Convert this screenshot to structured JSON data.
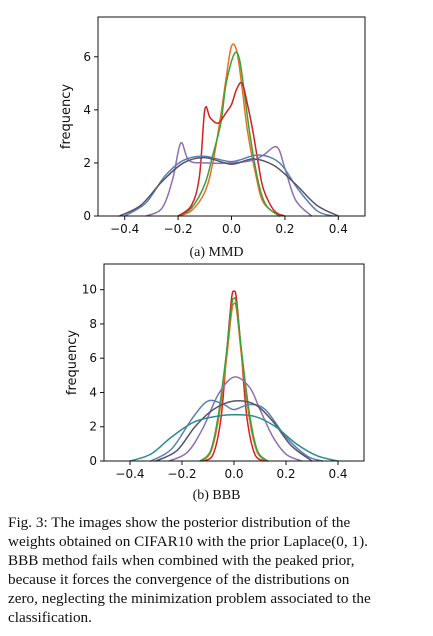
{
  "chart_data": [
    {
      "type": "line",
      "subtitle": "(a) MMD",
      "ylabel": "frequency",
      "xlabel": "",
      "xlim": [
        -0.5,
        0.5
      ],
      "ylim": [
        0,
        7.5
      ],
      "xticks": [
        -0.4,
        -0.2,
        0.0,
        0.2,
        0.4
      ],
      "xtick_labels": [
        "−0.4",
        "−0.2",
        "0.0",
        "0.2",
        "0.4"
      ],
      "yticks": [
        0,
        2,
        4,
        6
      ],
      "ytick_labels": [
        "0",
        "2",
        "4",
        "6"
      ],
      "grid": false,
      "series": [
        {
          "color": "#e7701e",
          "values": [
            [
              -0.2,
              0
            ],
            [
              -0.15,
              0.2
            ],
            [
              -0.1,
              0.9
            ],
            [
              -0.07,
              2.0
            ],
            [
              -0.04,
              3.8
            ],
            [
              -0.02,
              5.2
            ],
            [
              0.0,
              6.4
            ],
            [
              0.02,
              6.2
            ],
            [
              0.04,
              4.8
            ],
            [
              0.06,
              3.2
            ],
            [
              0.09,
              1.6
            ],
            [
              0.12,
              0.5
            ],
            [
              0.18,
              0
            ]
          ]
        },
        {
          "color": "#3aa23a",
          "values": [
            [
              -0.2,
              0
            ],
            [
              -0.15,
              0.3
            ],
            [
              -0.1,
              1.2
            ],
            [
              -0.07,
              2.3
            ],
            [
              -0.04,
              3.5
            ],
            [
              -0.02,
              5.0
            ],
            [
              0.01,
              6.1
            ],
            [
              0.03,
              5.9
            ],
            [
              0.05,
              4.5
            ],
            [
              0.07,
              3.0
            ],
            [
              0.1,
              1.3
            ],
            [
              0.13,
              0.4
            ],
            [
              0.18,
              0
            ]
          ]
        },
        {
          "color": "#d42020",
          "values": [
            [
              -0.2,
              0
            ],
            [
              -0.15,
              0.4
            ],
            [
              -0.12,
              1.5
            ],
            [
              -0.1,
              4.0
            ],
            [
              -0.08,
              3.7
            ],
            [
              -0.05,
              3.5
            ],
            [
              -0.02,
              3.9
            ],
            [
              0.0,
              4.2
            ],
            [
              0.02,
              4.8
            ],
            [
              0.04,
              5.0
            ],
            [
              0.06,
              4.2
            ],
            [
              0.08,
              3.2
            ],
            [
              0.1,
              2.0
            ],
            [
              0.12,
              1.0
            ],
            [
              0.16,
              0.2
            ],
            [
              0.2,
              0
            ]
          ]
        },
        {
          "color": "#8e6fb5",
          "values": [
            [
              -0.32,
              0
            ],
            [
              -0.26,
              0.3
            ],
            [
              -0.22,
              1.4
            ],
            [
              -0.19,
              2.75
            ],
            [
              -0.16,
              2.1
            ],
            [
              -0.1,
              2.0
            ],
            [
              0.0,
              2.0
            ],
            [
              0.08,
              2.1
            ],
            [
              0.12,
              2.3
            ],
            [
              0.17,
              2.6
            ],
            [
              0.2,
              1.8
            ],
            [
              0.24,
              0.6
            ],
            [
              0.3,
              0
            ]
          ]
        },
        {
          "color": "#5a7fb3",
          "values": [
            [
              -0.4,
              0
            ],
            [
              -0.32,
              0.5
            ],
            [
              -0.25,
              1.5
            ],
            [
              -0.18,
              2.1
            ],
            [
              -0.1,
              2.25
            ],
            [
              0.0,
              2.05
            ],
            [
              0.1,
              2.3
            ],
            [
              0.18,
              2.0
            ],
            [
              0.25,
              1.0
            ],
            [
              0.32,
              0.2
            ],
            [
              0.38,
              0
            ]
          ]
        },
        {
          "color": "#555566",
          "values": [
            [
              -0.42,
              0
            ],
            [
              -0.34,
              0.4
            ],
            [
              -0.26,
              1.3
            ],
            [
              -0.18,
              2.0
            ],
            [
              -0.1,
              2.2
            ],
            [
              0.0,
              1.95
            ],
            [
              0.08,
              2.15
            ],
            [
              0.16,
              1.9
            ],
            [
              0.24,
              1.2
            ],
            [
              0.32,
              0.4
            ],
            [
              0.4,
              0
            ]
          ]
        }
      ]
    },
    {
      "type": "line",
      "subtitle": "(b) BBB",
      "ylabel": "frequency",
      "xlabel": "",
      "xlim": [
        -0.5,
        0.5
      ],
      "ylim": [
        0,
        11.5
      ],
      "xticks": [
        -0.4,
        -0.2,
        0.0,
        0.2,
        0.4
      ],
      "xtick_labels": [
        "−0.4",
        "−0.2",
        "0.0",
        "0.2",
        "0.4"
      ],
      "yticks": [
        0,
        2,
        4,
        6,
        8,
        10
      ],
      "ytick_labels": [
        "0",
        "2",
        "4",
        "6",
        "8",
        "10"
      ],
      "grid": false,
      "series": [
        {
          "color": "#d42020",
          "values": [
            [
              -0.12,
              0
            ],
            [
              -0.08,
              0.4
            ],
            [
              -0.05,
              2.5
            ],
            [
              -0.03,
              6.0
            ],
            [
              -0.01,
              9.4
            ],
            [
              0.0,
              9.9
            ],
            [
              0.01,
              9.4
            ],
            [
              0.03,
              6.0
            ],
            [
              0.05,
              2.5
            ],
            [
              0.08,
              0.4
            ],
            [
              0.12,
              0
            ]
          ]
        },
        {
          "color": "#e7701e",
          "values": [
            [
              -0.13,
              0
            ],
            [
              -0.09,
              0.5
            ],
            [
              -0.06,
              2.4
            ],
            [
              -0.03,
              5.8
            ],
            [
              -0.01,
              8.6
            ],
            [
              0.0,
              9.2
            ],
            [
              0.01,
              8.8
            ],
            [
              0.03,
              6.0
            ],
            [
              0.06,
              2.4
            ],
            [
              0.09,
              0.5
            ],
            [
              0.13,
              0
            ]
          ]
        },
        {
          "color": "#3aa23a",
          "values": [
            [
              -0.13,
              0
            ],
            [
              -0.09,
              0.6
            ],
            [
              -0.06,
              2.7
            ],
            [
              -0.03,
              6.2
            ],
            [
              -0.01,
              9.0
            ],
            [
              0.0,
              9.5
            ],
            [
              0.01,
              9.1
            ],
            [
              0.03,
              6.3
            ],
            [
              0.06,
              2.7
            ],
            [
              0.09,
              0.6
            ],
            [
              0.13,
              0
            ]
          ]
        },
        {
          "color": "#8e6fb5",
          "values": [
            [
              -0.25,
              0
            ],
            [
              -0.18,
              0.5
            ],
            [
              -0.12,
              1.9
            ],
            [
              -0.06,
              3.9
            ],
            [
              0.0,
              4.9
            ],
            [
              0.06,
              4.3
            ],
            [
              0.1,
              3.0
            ],
            [
              0.15,
              1.4
            ],
            [
              0.2,
              0.4
            ],
            [
              0.26,
              0
            ]
          ]
        },
        {
          "color": "#5a7fb3",
          "values": [
            [
              -0.32,
              0
            ],
            [
              -0.24,
              0.7
            ],
            [
              -0.16,
              2.5
            ],
            [
              -0.1,
              3.5
            ],
            [
              -0.04,
              3.3
            ],
            [
              0.0,
              3.0
            ],
            [
              0.06,
              3.3
            ],
            [
              0.12,
              3.0
            ],
            [
              0.2,
              1.4
            ],
            [
              0.28,
              0.3
            ],
            [
              0.34,
              0
            ]
          ]
        },
        {
          "color": "#555566",
          "values": [
            [
              -0.3,
              0
            ],
            [
              -0.22,
              0.6
            ],
            [
              -0.15,
              2.0
            ],
            [
              -0.08,
              3.0
            ],
            [
              0.0,
              3.5
            ],
            [
              0.08,
              3.3
            ],
            [
              0.15,
              2.3
            ],
            [
              0.22,
              0.9
            ],
            [
              0.3,
              0
            ]
          ]
        },
        {
          "color": "#2e8a92",
          "values": [
            [
              -0.4,
              0
            ],
            [
              -0.32,
              0.4
            ],
            [
              -0.24,
              1.4
            ],
            [
              -0.15,
              2.3
            ],
            [
              -0.05,
              2.65
            ],
            [
              0.0,
              2.7
            ],
            [
              0.08,
              2.6
            ],
            [
              0.16,
              2.0
            ],
            [
              0.24,
              1.0
            ],
            [
              0.32,
              0.3
            ],
            [
              0.4,
              0
            ]
          ]
        }
      ]
    }
  ],
  "caption": {
    "lines": [
      "Fig. 3: The images show the posterior distribution of the",
      "weights obtained on CIFAR10 with the prior Laplace(0, 1).",
      "BBB method fails when combined with the peaked prior,",
      "because it forces the convergence of the distributions on",
      "zero, neglecting the minimization problem associated to the",
      "classification."
    ]
  }
}
